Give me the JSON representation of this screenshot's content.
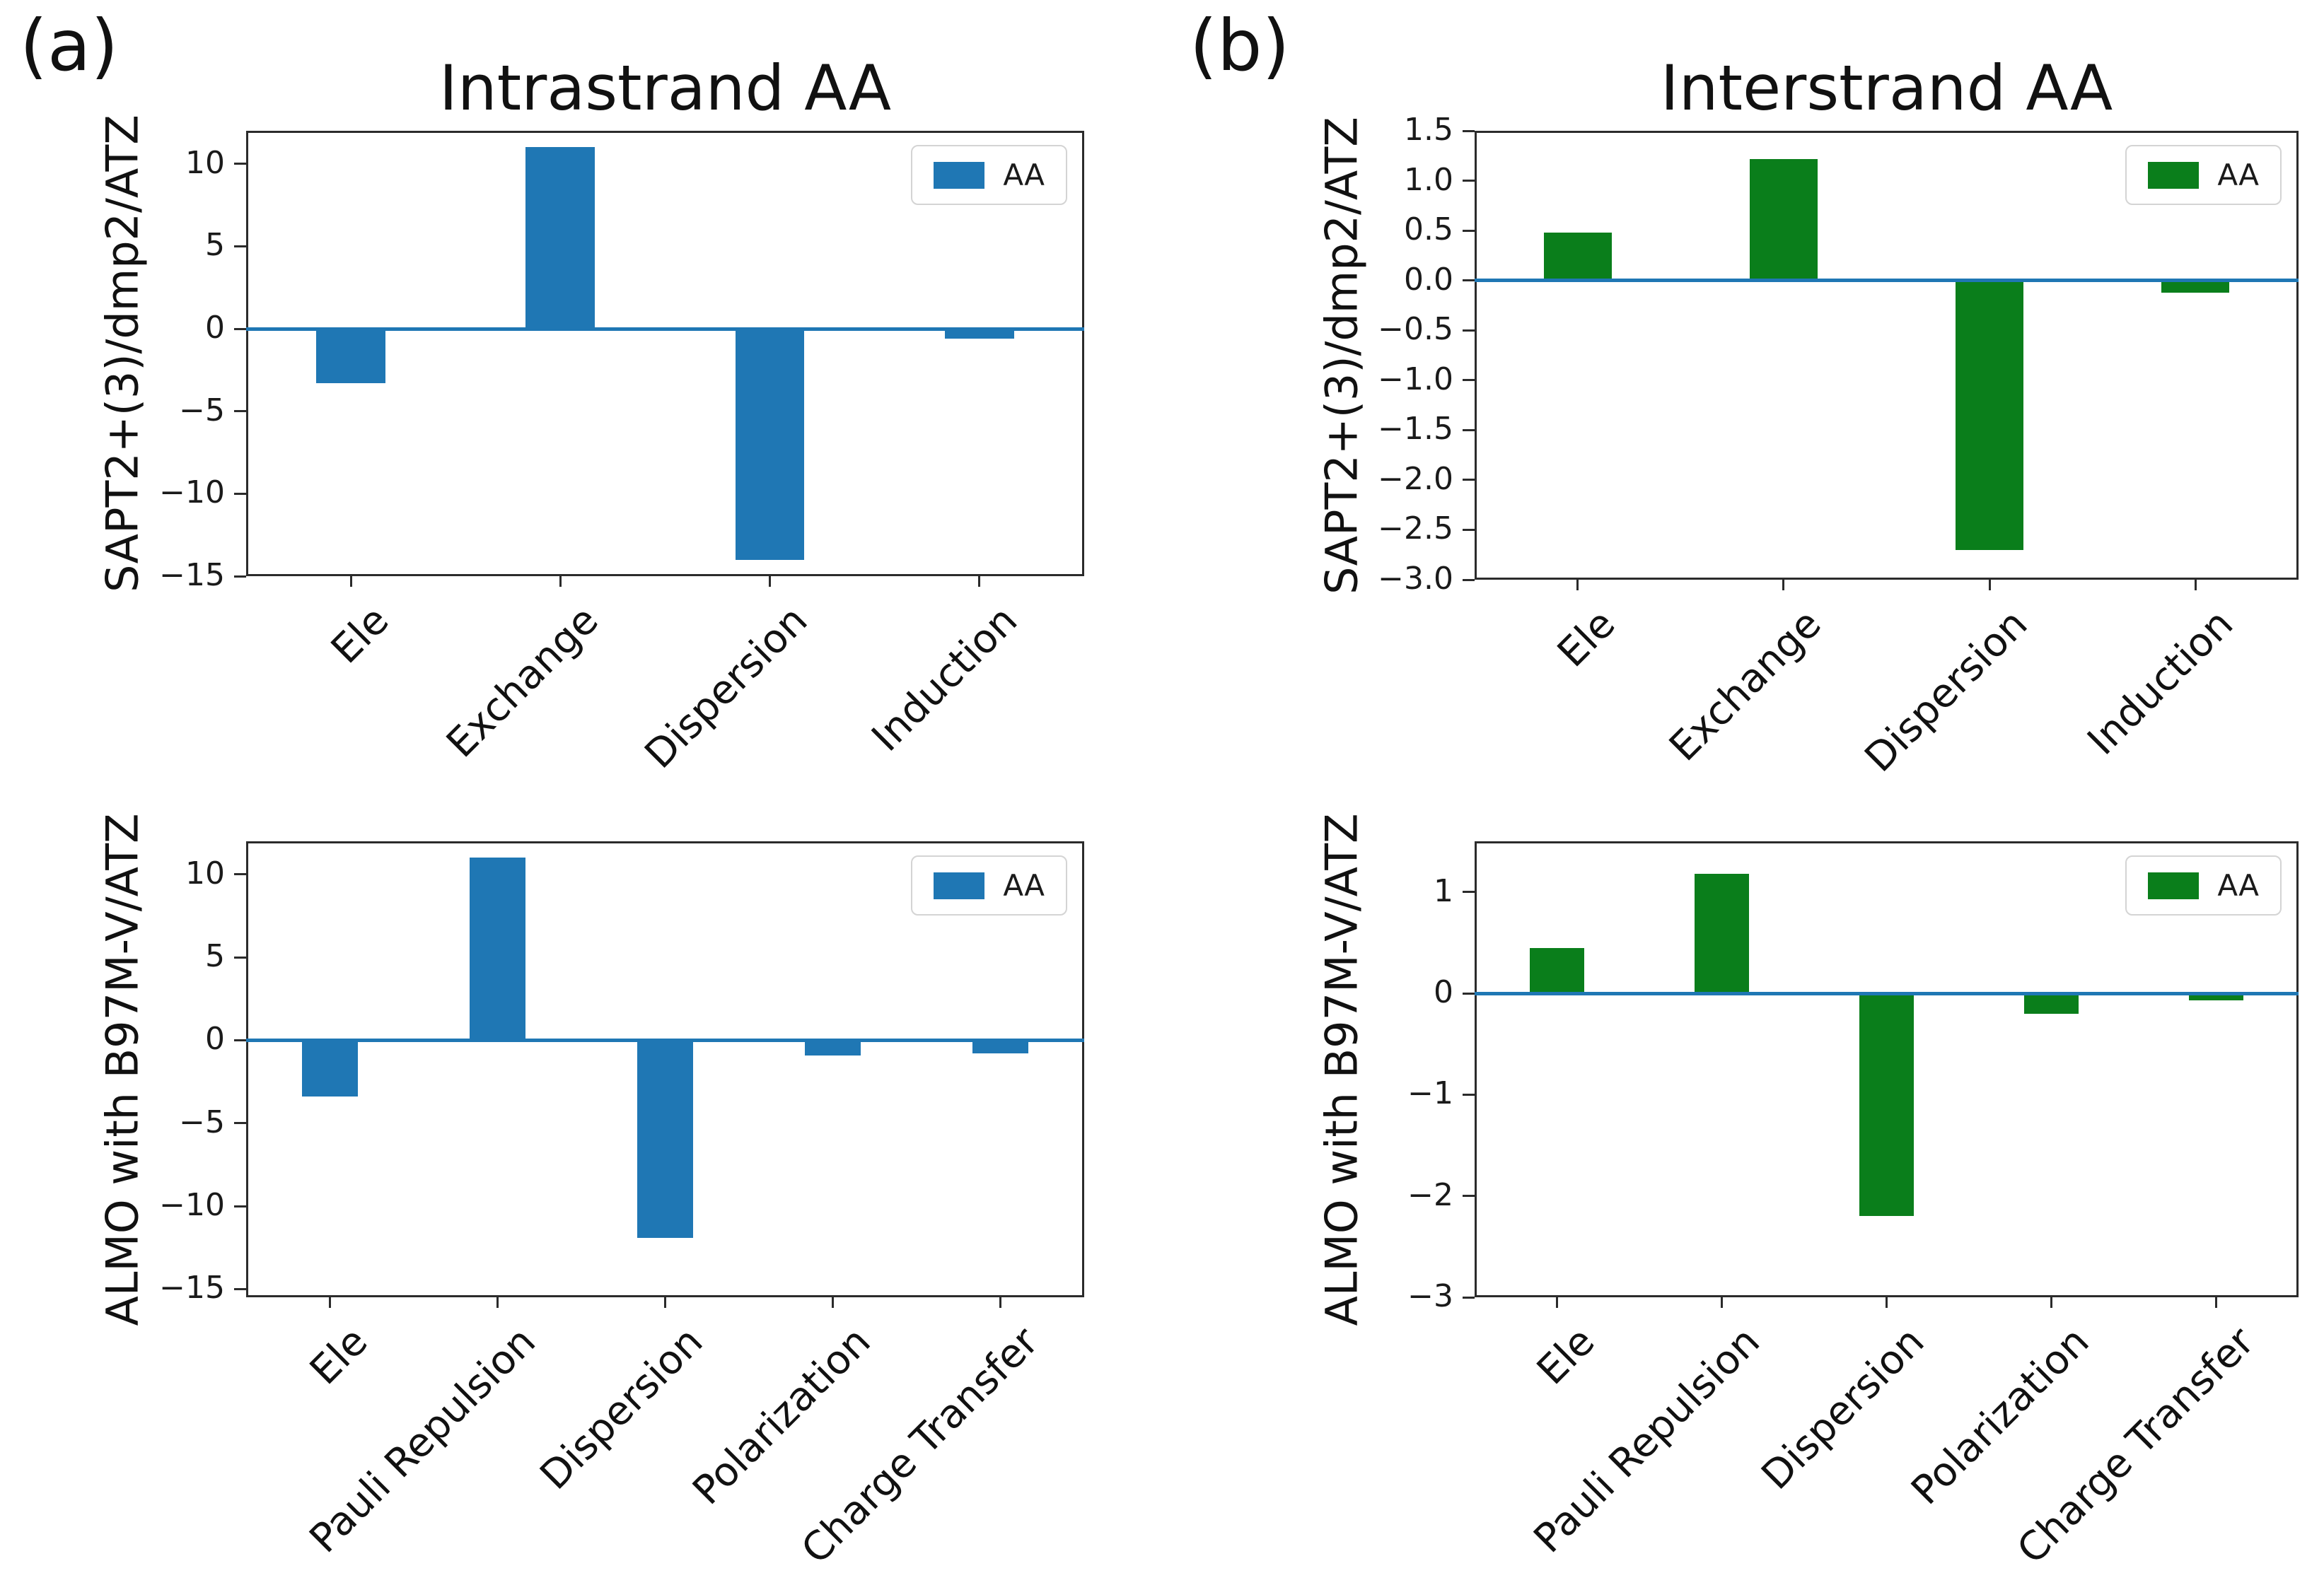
{
  "panels": {
    "a_label": "(a)",
    "b_label": "(b)"
  },
  "colors": {
    "blue_series": "#1f77b4",
    "green_series": "#0a7e1b",
    "zero_line": "#1f77b4",
    "axis": "#2b2b2b"
  },
  "chart_data": [
    {
      "id": "intrastrand-sapt",
      "type": "bar",
      "title": "Intrastrand AA",
      "ylabel": "SAPT2+(3)/dmp2/ATZ",
      "legend_label": "AA",
      "legend_position": "upper right",
      "grid": false,
      "bar_color": "#1f77b4",
      "categories": [
        "Ele",
        "Exchange",
        "Dispersion",
        "Induction"
      ],
      "values": [
        -3.3,
        11.0,
        -14.0,
        -0.6
      ],
      "ylim": [
        -15,
        12
      ],
      "ytick_values": [
        10,
        5,
        0,
        -5,
        -10,
        -15
      ],
      "ytick_labels": [
        "10",
        "5",
        "0",
        "−5",
        "−10",
        "−15"
      ],
      "zero_line": true
    },
    {
      "id": "interstrand-sapt",
      "type": "bar",
      "title": "Interstrand AA",
      "ylabel": "SAPT2+(3)/dmp2/ATZ",
      "legend_label": "AA",
      "legend_position": "upper right",
      "grid": false,
      "bar_color": "#0a7e1b",
      "categories": [
        "Ele",
        "Exchange",
        "Dispersion",
        "Induction"
      ],
      "values": [
        0.48,
        1.22,
        -2.7,
        -0.12
      ],
      "ylim": [
        -3.0,
        1.5
      ],
      "ytick_values": [
        1.5,
        1.0,
        0.5,
        0.0,
        -0.5,
        -1.0,
        -1.5,
        -2.0,
        -2.5,
        -3.0
      ],
      "ytick_labels": [
        "1.5",
        "1.0",
        "0.5",
        "0.0",
        "−0.5",
        "−1.0",
        "−1.5",
        "−2.0",
        "−2.5",
        "−3.0"
      ],
      "zero_line": true
    },
    {
      "id": "intrastrand-almo",
      "type": "bar",
      "title": "",
      "ylabel": "ALMO with B97M-V/ATZ",
      "legend_label": "AA",
      "legend_position": "upper right",
      "grid": false,
      "bar_color": "#1f77b4",
      "categories": [
        "Ele",
        "Pauli Repulsion",
        "Dispersion",
        "Polarization",
        "Charge Transfer"
      ],
      "values": [
        -3.4,
        11.0,
        -11.9,
        -0.9,
        -0.8
      ],
      "ylim": [
        -15.5,
        12
      ],
      "ytick_values": [
        10,
        5,
        0,
        -5,
        -10,
        -15
      ],
      "ytick_labels": [
        "10",
        "5",
        "0",
        "−5",
        "−10",
        "−15"
      ],
      "zero_line": true
    },
    {
      "id": "interstrand-almo",
      "type": "bar",
      "title": "",
      "ylabel": "ALMO with B97M-V/ATZ",
      "legend_label": "AA",
      "legend_position": "upper right",
      "grid": false,
      "bar_color": "#0a7e1b",
      "categories": [
        "Ele",
        "Pauli Repulsion",
        "Dispersion",
        "Polarization",
        "Charge Transfer"
      ],
      "values": [
        0.45,
        1.18,
        -2.2,
        -0.2,
        -0.07
      ],
      "ylim": [
        -3.0,
        1.5
      ],
      "ytick_values": [
        1,
        0,
        -1,
        -2,
        -3
      ],
      "ytick_labels": [
        "1",
        "0",
        "−1",
        "−2",
        "−3"
      ],
      "zero_line": true
    }
  ]
}
